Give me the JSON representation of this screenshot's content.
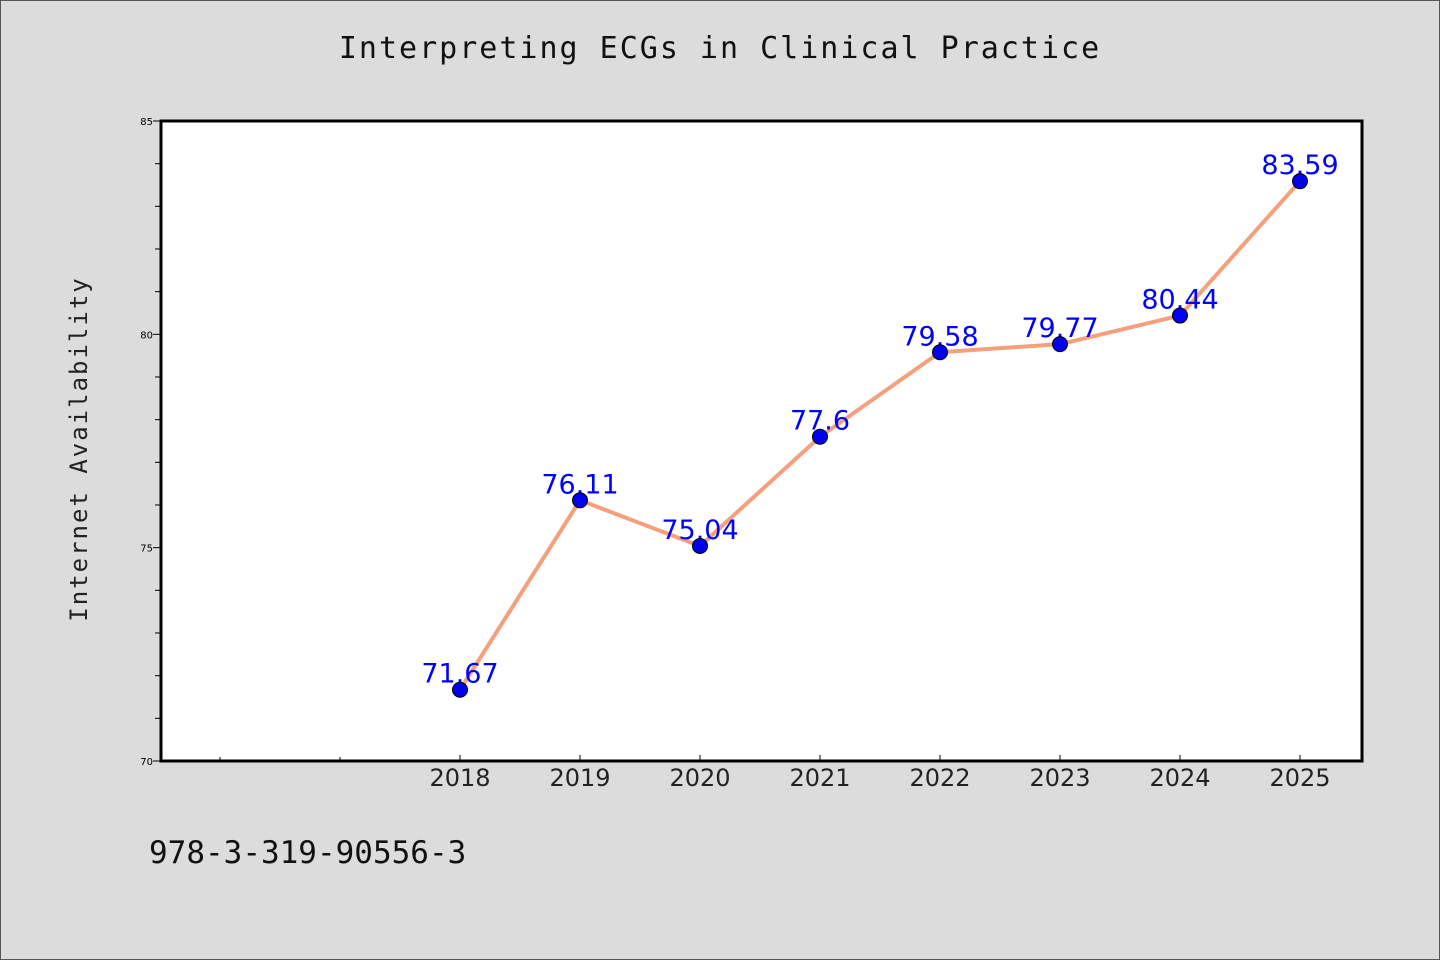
{
  "chart_data": {
    "type": "line",
    "title": "Interpreting ECGs in Clinical Practice",
    "xlabel": "",
    "ylabel": "Internet Availability",
    "x": [
      "2018",
      "2019",
      "2020",
      "2021",
      "2022",
      "2023",
      "2024",
      "2025"
    ],
    "values": [
      71.67,
      76.11,
      75.04,
      77.6,
      79.58,
      79.77,
      80.44,
      83.59
    ],
    "data_labels": [
      "71.67",
      "76.11",
      "75.04",
      "77.6",
      "79.58",
      "79.77",
      "80.44",
      "83.59"
    ],
    "ylim": [
      70,
      85
    ],
    "y_ticks": [
      70,
      75,
      80,
      85
    ],
    "y_tick_labels": [
      "70",
      "75",
      "80",
      "85"
    ],
    "grid": false,
    "colors": {
      "line": "#f4a07c",
      "marker": "#0000ee",
      "data_label": "#0000ff",
      "background": "#dcdcdc",
      "plot_background": "#ffffff"
    }
  },
  "footer": {
    "isbn": "978-3-319-90556-3"
  }
}
